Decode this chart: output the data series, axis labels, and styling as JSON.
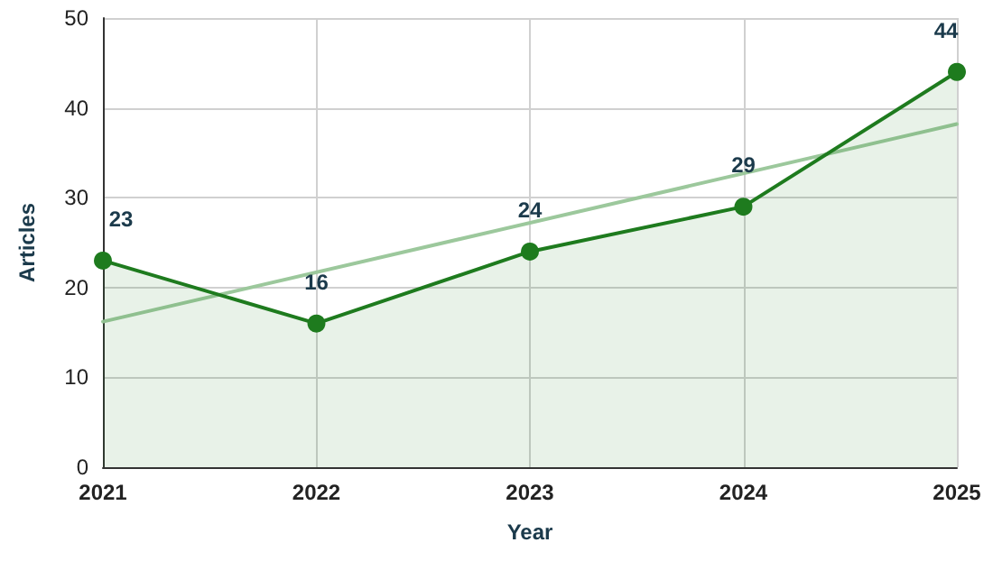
{
  "chart_data": {
    "type": "area",
    "xlabel": "Year",
    "ylabel": "Articles",
    "x": [
      2021,
      2022,
      2023,
      2024,
      2025
    ],
    "series": [
      {
        "color": "#1e7b1e",
        "values": [
          23,
          16,
          24,
          29,
          44
        ],
        "data_labels": true,
        "marker": "circle"
      },
      {
        "type": "line",
        "color": "#9cc89c",
        "x": [
          2021,
          2025
        ],
        "values": [
          16.2,
          38.2
        ],
        "marker": "none"
      }
    ],
    "xlim": [
      2021,
      2025
    ],
    "xticks": [
      2021,
      2022,
      2023,
      2024,
      2025
    ],
    "ylim": [
      0,
      50
    ],
    "yticks": [
      0,
      10,
      20,
      30,
      40,
      50
    ],
    "grid": true
  }
}
